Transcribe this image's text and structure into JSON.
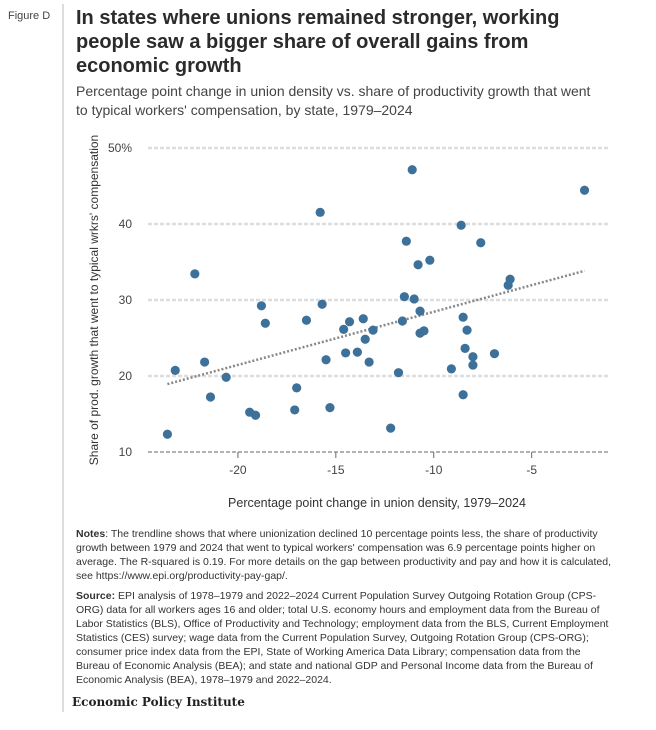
{
  "figure_label": "Figure D",
  "title": "In states where unions remained stronger, working people saw a bigger share of overall gains from economic growth",
  "subtitle": "Percentage point change in union density vs. share of productivity growth that went to typical workers' compensation, by state, 1979–2024",
  "notes_label": "Notes",
  "notes_text": ": The trendline shows that where unionization declined 10 percentage points less, the share of productivity growth between 1979 and 2024 that went to typical workers' compensation was 6.9 percentage points higher on average. The R-squared is 0.19. For more details on the gap between productivity and pay and how it is calculated, see https://www.epi.org/productivity-pay-gap/.",
  "source_label": "Source:",
  "source_text": " EPI analysis of 1978–1979 and 2022–2024 Current Population Survey Outgoing Rotation Group (CPS-ORG) data for all workers ages 16 and older; total U.S. economy hours and employment data from the Bureau of Labor Statistics (BLS), Office of Productivity and Technology; employment data from the BLS, Current Employment Statistics (CES) survey; wage data from the Current Population Survey, Outgoing Rotation Group (CPS-ORG); consumer price index data from the EPI, State of Working America Data Library; compensation data from the Bureau of Economic Analysis (BEA); and state and national GDP and Personal Income data from the Bureau of Economic Analysis (BEA), 1978–1979 and 2022–2024.",
  "logo_text": "Economic Policy Institute",
  "colors": {
    "point": "#3d7199",
    "trend": "#888888",
    "grid": "#dddddd",
    "axis": "#999999"
  },
  "chart_data": {
    "type": "scatter",
    "xlabel": "Percentage point change in union density, 1979–2024",
    "ylabel": "Share of prod. growth that went to typical wrkrs' compensation",
    "xlim": [
      -25,
      -1
    ],
    "ylim": [
      10,
      50
    ],
    "xticks": [
      -20,
      -15,
      -10,
      -5
    ],
    "xtick_labels": [
      "-20",
      "-15",
      "-10",
      "-5"
    ],
    "yticks": [
      10,
      20,
      30,
      40,
      50
    ],
    "ytick_labels": [
      "10",
      "20",
      "30",
      "40",
      "50%"
    ],
    "grid": true,
    "points": [
      [
        -23.6,
        12.6
      ],
      [
        -23.2,
        21.0
      ],
      [
        -22.2,
        33.7
      ],
      [
        -21.7,
        22.1
      ],
      [
        -21.4,
        17.5
      ],
      [
        -20.6,
        20.1
      ],
      [
        -19.4,
        15.5
      ],
      [
        -19.1,
        15.1
      ],
      [
        -18.8,
        29.5
      ],
      [
        -18.6,
        27.2
      ],
      [
        -17.1,
        15.8
      ],
      [
        -17.0,
        18.7
      ],
      [
        -16.5,
        27.6
      ],
      [
        -15.8,
        41.8
      ],
      [
        -15.7,
        29.7
      ],
      [
        -15.5,
        22.4
      ],
      [
        -15.3,
        16.1
      ],
      [
        -14.6,
        26.4
      ],
      [
        -14.3,
        27.4
      ],
      [
        -14.5,
        23.3
      ],
      [
        -13.9,
        23.4
      ],
      [
        -13.6,
        27.8
      ],
      [
        -13.5,
        25.1
      ],
      [
        -13.3,
        22.1
      ],
      [
        -13.1,
        26.3
      ],
      [
        -12.2,
        13.4
      ],
      [
        -11.8,
        20.7
      ],
      [
        -11.6,
        27.5
      ],
      [
        -11.1,
        47.4
      ],
      [
        -8.6,
        40.1
      ],
      [
        -11.4,
        38.0
      ],
      [
        -7.6,
        37.8
      ],
      [
        -10.2,
        35.5
      ],
      [
        -10.8,
        34.9
      ],
      [
        -6.1,
        33.0
      ],
      [
        -6.2,
        32.2
      ],
      [
        -2.3,
        44.7
      ],
      [
        -11.5,
        30.7
      ],
      [
        -11.0,
        30.4
      ],
      [
        -10.7,
        28.8
      ],
      [
        -8.5,
        28.0
      ],
      [
        -8.3,
        26.3
      ],
      [
        -10.7,
        25.9
      ],
      [
        -10.5,
        26.2
      ],
      [
        -8.4,
        23.9
      ],
      [
        -8.0,
        22.8
      ],
      [
        -8.0,
        21.7
      ],
      [
        -6.9,
        23.2
      ],
      [
        -9.1,
        21.2
      ],
      [
        -8.5,
        17.8
      ]
    ],
    "trendline": {
      "x": [
        -23.6,
        -2.3
      ],
      "y": [
        19.2,
        34.1
      ]
    }
  }
}
